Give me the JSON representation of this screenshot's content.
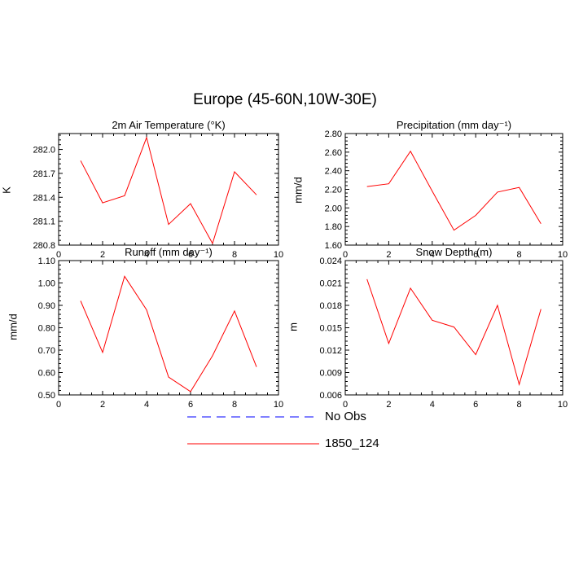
{
  "title": "Europe (45-60N,10W-30E)",
  "legend": {
    "items": [
      {
        "label": "No Obs",
        "color": "#0000ff",
        "dash": true
      },
      {
        "label": "1850_124",
        "color": "#ff0000",
        "dash": false
      }
    ]
  },
  "chart_data": [
    {
      "type": "line",
      "title": "2m Air Temperature (°K)",
      "ylabel": "K",
      "xlim": [
        0,
        10
      ],
      "ylim": [
        280.8,
        282.2
      ],
      "xticks": [
        "0",
        "2",
        "4",
        "6",
        "8",
        "10"
      ],
      "yticks": [
        "280.8",
        "281.1",
        "281.4",
        "281.7",
        "282.0"
      ],
      "series": [
        {
          "name": "1850_124",
          "color": "#ff0000",
          "x": [
            1,
            2,
            3,
            4,
            5,
            6,
            7,
            8,
            9
          ],
          "y": [
            281.86,
            281.33,
            281.42,
            282.15,
            281.06,
            281.32,
            280.82,
            281.72,
            281.43
          ]
        }
      ]
    },
    {
      "type": "line",
      "title": "Precipitation (mm day⁻¹)",
      "ylabel": "mm/d",
      "xlim": [
        0,
        10
      ],
      "ylim": [
        1.6,
        2.8
      ],
      "xticks": [
        "0",
        "2",
        "4",
        "6",
        "8",
        "10"
      ],
      "yticks": [
        "1.60",
        "1.80",
        "2.00",
        "2.20",
        "2.40",
        "2.60",
        "2.80"
      ],
      "series": [
        {
          "name": "1850_124",
          "color": "#ff0000",
          "x": [
            1,
            2,
            3,
            4,
            5,
            6,
            7,
            8,
            9
          ],
          "y": [
            2.23,
            2.26,
            2.61,
            2.18,
            1.76,
            1.92,
            2.17,
            2.22,
            1.83
          ]
        }
      ]
    },
    {
      "type": "line",
      "title": "Runoff (mm day⁻¹)",
      "ylabel": "mm/d",
      "xlim": [
        0,
        10
      ],
      "ylim": [
        0.5,
        1.1
      ],
      "xticks": [
        "0",
        "2",
        "4",
        "6",
        "8",
        "10"
      ],
      "yticks": [
        "0.50",
        "0.60",
        "0.70",
        "0.80",
        "0.90",
        "1.00",
        "1.10"
      ],
      "series": [
        {
          "name": "1850_124",
          "color": "#ff0000",
          "x": [
            1,
            2,
            3,
            4,
            5,
            6,
            7,
            8,
            9
          ],
          "y": [
            0.92,
            0.69,
            1.03,
            0.88,
            0.58,
            0.515,
            0.675,
            0.875,
            0.625
          ]
        }
      ]
    },
    {
      "type": "line",
      "title": "Snow Depth (m)",
      "ylabel": "m",
      "xlim": [
        0,
        10
      ],
      "ylim": [
        0.006,
        0.024
      ],
      "xticks": [
        "0",
        "2",
        "4",
        "6",
        "8",
        "10"
      ],
      "yticks": [
        "0.006",
        "0.009",
        "0.012",
        "0.015",
        "0.018",
        "0.021",
        "0.024"
      ],
      "series": [
        {
          "name": "1850_124",
          "color": "#ff0000",
          "x": [
            1,
            2,
            3,
            4,
            5,
            6,
            7,
            8,
            9
          ],
          "y": [
            0.0215,
            0.0129,
            0.0203,
            0.016,
            0.0151,
            0.0114,
            0.018,
            0.0074,
            0.0175
          ]
        }
      ]
    }
  ]
}
